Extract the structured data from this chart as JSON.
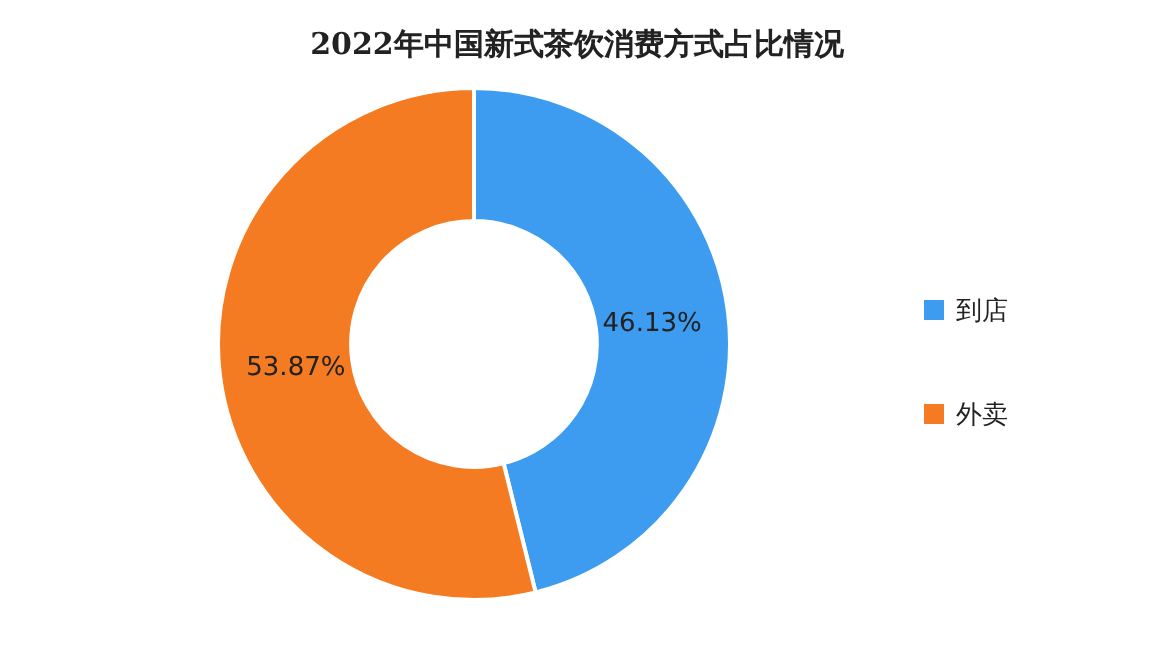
{
  "chart_data": {
    "type": "donut",
    "title": "2022年中国新式茶饮消费方式占比情况",
    "categories": [
      "到店",
      "外卖"
    ],
    "values": [
      46.13,
      53.87
    ],
    "colors": [
      "#3d9bf0",
      "#f57b22"
    ],
    "value_labels": [
      "46.13%",
      "53.87%"
    ],
    "legend": "right"
  }
}
